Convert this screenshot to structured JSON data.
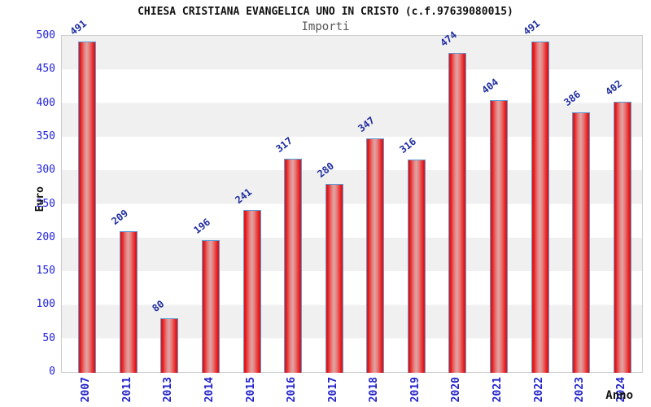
{
  "header": {
    "title": "CHIESA CRISTIANA EVANGELICA UNO IN CRISTO (c.f.97639080015)",
    "subtitle": "Importi"
  },
  "chart_data": {
    "type": "bar",
    "title": "CHIESA CRISTIANA EVANGELICA UNO IN CRISTO (c.f.97639080015)",
    "subtitle": "Importi",
    "categories": [
      "2007",
      "2011",
      "2013",
      "2014",
      "2015",
      "2016",
      "2017",
      "2018",
      "2019",
      "2020",
      "2021",
      "2022",
      "2023",
      "2024"
    ],
    "values": [
      491,
      209,
      80,
      196,
      241,
      317,
      280,
      347,
      316,
      474,
      404,
      491,
      386,
      402
    ],
    "xlabel": "Anno",
    "ylabel": "Euro",
    "ylim": [
      0,
      500
    ],
    "ytick_step": 50,
    "grid": "alternating horizontal bands",
    "legend": "none",
    "value_labels": "rotated above bars"
  },
  "colors": {
    "bar_fill": "#e41616",
    "bar_highlight": "#dda6a6",
    "bar_border": "#5b9bd5",
    "value_label": "#1f2da0",
    "axis_tick_text": "#2222dd",
    "year_label": "#2222cc",
    "band_gray": "#f0f0f0",
    "band_white": "#ffffff",
    "plot_frame": "#cccccc",
    "title_text": "#111111",
    "subtitle_text": "#555555"
  }
}
